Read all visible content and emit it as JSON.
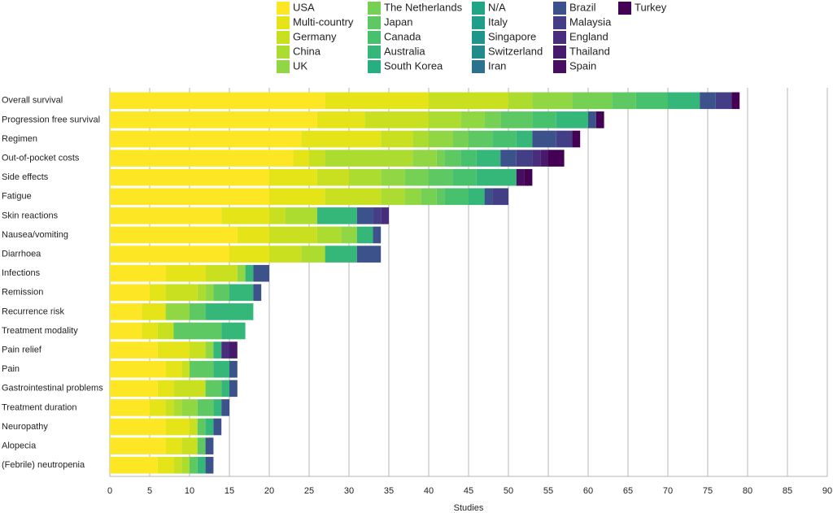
{
  "chart_data": {
    "type": "stacked-bar-horizontal",
    "x_label": "Studies",
    "categories": [
      "Overall survival",
      "Progression free survival",
      "Regimen",
      "Out-of-pocket costs",
      "Side effects",
      "Fatigue",
      "Skin reactions",
      "Nausea/vomiting",
      "Diarrhoea",
      "Infections",
      "Remission",
      "Recurrence risk",
      "Treatment modality",
      "Pain relief",
      "Pain",
      "Gastrointestinal problems",
      "Treatment duration",
      "Neuropathy",
      "Alopecia",
      "(Febrile) neutropenia"
    ],
    "xlim": [
      0,
      90
    ],
    "xticks": [
      0,
      5,
      10,
      15,
      20,
      25,
      30,
      35,
      40,
      45,
      50,
      55,
      60,
      65,
      70,
      75,
      80,
      85,
      90
    ],
    "grid": true,
    "series": [
      {
        "name": "USA",
        "color": "#fde725",
        "values": [
          27,
          26,
          24,
          23,
          20,
          20,
          14,
          16,
          15,
          7,
          5,
          4,
          4,
          6,
          7,
          6,
          5,
          7,
          7,
          6
        ]
      },
      {
        "name": "Multi-country",
        "color": "#e5e419",
        "values": [
          13,
          6,
          10,
          2,
          6,
          7,
          6,
          4,
          5,
          5,
          2,
          3,
          2,
          4,
          2,
          2,
          2,
          3,
          2,
          2
        ]
      },
      {
        "name": "Germany",
        "color": "#c8e020",
        "values": [
          10,
          8,
          4,
          2,
          4,
          7,
          2,
          6,
          4,
          4,
          4,
          0,
          2,
          2,
          1,
          4,
          1,
          1,
          2,
          1
        ]
      },
      {
        "name": "China",
        "color": "#addc30",
        "values": [
          3,
          4,
          2,
          11,
          4,
          3,
          4,
          3,
          3,
          0,
          1,
          0,
          0,
          0,
          0,
          0,
          1,
          0,
          0,
          1
        ]
      },
      {
        "name": "UK",
        "color": "#90d743",
        "values": [
          5,
          3,
          3,
          3,
          3,
          2,
          0,
          2,
          0,
          1,
          1,
          3,
          0,
          1,
          0,
          0,
          2,
          0,
          0,
          0
        ]
      },
      {
        "name": "The Netherlands",
        "color": "#75d054",
        "values": [
          5,
          2,
          2,
          1,
          3,
          2,
          0,
          0,
          0,
          0,
          0,
          0,
          0,
          0,
          0,
          0,
          0,
          0,
          0,
          0
        ]
      },
      {
        "name": "Japan",
        "color": "#5ec962",
        "values": [
          3,
          4,
          3,
          2,
          3,
          1,
          0,
          0,
          0,
          0,
          2,
          2,
          6,
          0,
          3,
          2,
          2,
          1,
          1,
          1
        ]
      },
      {
        "name": "Canada",
        "color": "#48c16e",
        "values": [
          4,
          3,
          3,
          2,
          3,
          3,
          0,
          0,
          0,
          0,
          0,
          0,
          0,
          0,
          0,
          0,
          0,
          0,
          0,
          0
        ]
      },
      {
        "name": "Australia",
        "color": "#35b779",
        "values": [
          4,
          4,
          2,
          3,
          5,
          2,
          5,
          2,
          4,
          1,
          3,
          6,
          3,
          1,
          2,
          1,
          1,
          1,
          0,
          1
        ]
      },
      {
        "name": "South Korea",
        "color": "#28ae80",
        "values": [
          0,
          0,
          0,
          0,
          0,
          0,
          0,
          0,
          0,
          0,
          0,
          0,
          0,
          0,
          0,
          0,
          0,
          0,
          0,
          0
        ]
      },
      {
        "name": "N/A",
        "color": "#21a685",
        "values": [
          0,
          0,
          0,
          0,
          0,
          0,
          0,
          0,
          0,
          0,
          0,
          0,
          0,
          0,
          0,
          0,
          0,
          0,
          0,
          0
        ]
      },
      {
        "name": "Italy",
        "color": "#1f9e89",
        "values": [
          0,
          0,
          0,
          0,
          0,
          0,
          0,
          0,
          0,
          0,
          0,
          0,
          0,
          0,
          0,
          0,
          0,
          0,
          0,
          0
        ]
      },
      {
        "name": "Singapore",
        "color": "#1f958b",
        "values": [
          0,
          0,
          0,
          0,
          0,
          0,
          0,
          0,
          0,
          0,
          0,
          0,
          0,
          0,
          0,
          0,
          0,
          0,
          0,
          0
        ]
      },
      {
        "name": "Switzerland",
        "color": "#228c8d",
        "values": [
          0,
          0,
          0,
          0,
          0,
          0,
          0,
          0,
          0,
          0,
          0,
          0,
          0,
          0,
          0,
          0,
          0,
          0,
          0,
          0
        ]
      },
      {
        "name": "Iran",
        "color": "#2c728e",
        "values": [
          0,
          0,
          0,
          0,
          0,
          0,
          0,
          0,
          0,
          0,
          0,
          0,
          0,
          0,
          0,
          0,
          0,
          0,
          0,
          0
        ]
      },
      {
        "name": "Brazil",
        "color": "#3b528b",
        "values": [
          2,
          1,
          3,
          2,
          0,
          1,
          2,
          1,
          3,
          2,
          1,
          0,
          0,
          0,
          1,
          1,
          1,
          1,
          1,
          1
        ]
      },
      {
        "name": "Malaysia",
        "color": "#433e85",
        "values": [
          2,
          0,
          2,
          2,
          0,
          2,
          1,
          0,
          0,
          0,
          0,
          0,
          0,
          0,
          0,
          0,
          0,
          0,
          0,
          0
        ]
      },
      {
        "name": "England",
        "color": "#472d7b",
        "values": [
          0,
          0,
          0,
          1,
          0,
          0,
          1,
          0,
          0,
          0,
          0,
          0,
          0,
          1,
          0,
          0,
          0,
          0,
          0,
          0
        ]
      },
      {
        "name": "Thailand",
        "color": "#481a6c",
        "values": [
          0,
          0,
          0,
          1,
          0,
          0,
          0,
          0,
          0,
          0,
          0,
          0,
          0,
          1,
          0,
          0,
          0,
          0,
          0,
          0
        ]
      },
      {
        "name": "Spain",
        "color": "#470d60",
        "values": [
          0,
          0,
          0,
          0,
          1,
          0,
          0,
          0,
          0,
          0,
          0,
          0,
          0,
          0,
          0,
          0,
          0,
          0,
          0,
          0
        ]
      },
      {
        "name": "Turkey",
        "color": "#440154",
        "values": [
          1,
          1,
          1,
          2,
          1,
          0,
          0,
          0,
          0,
          0,
          0,
          0,
          0,
          0,
          0,
          0,
          0,
          0,
          0,
          0
        ]
      }
    ]
  }
}
